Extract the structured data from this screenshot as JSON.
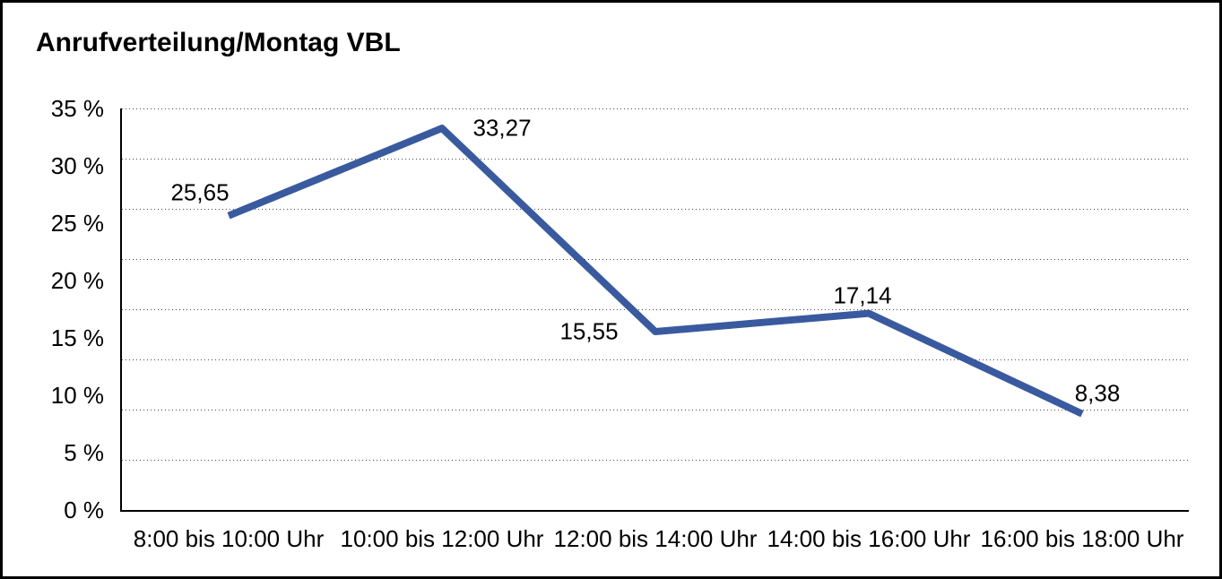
{
  "title": "Anrufverteilung/Montag VBL",
  "colors": {
    "line": "#3A5A9F",
    "grid": "#4A4A4A",
    "axis": "#000000",
    "text": "#000000",
    "background": "#FFFFFF",
    "frame_border": "#000000"
  },
  "chart_data": {
    "type": "line",
    "title": "Anrufverteilung/Montag VBL",
    "categories": [
      "8:00 bis 10:00 Uhr",
      "10:00 bis 12:00 Uhr",
      "12:00 bis 14:00 Uhr",
      "14:00 bis 16:00 Uhr",
      "16:00 bis 18:00 Uhr"
    ],
    "values": [
      25.65,
      33.27,
      15.55,
      17.14,
      8.38
    ],
    "value_labels": [
      "25,65",
      "33,27",
      "15,55",
      "17,14",
      "8,38"
    ],
    "series_name": "Anrufverteilung Montag VBL",
    "xlabel": "",
    "ylabel": "",
    "ylim": [
      0,
      35
    ],
    "y_tick_labels": [
      "35 %",
      "30 %",
      "25 %",
      "20 %",
      "15 %",
      "10 %",
      "5 %",
      "0 %"
    ],
    "y_tick_step_percent": 5,
    "grid": "horizontal-dotted",
    "legend": "none"
  }
}
